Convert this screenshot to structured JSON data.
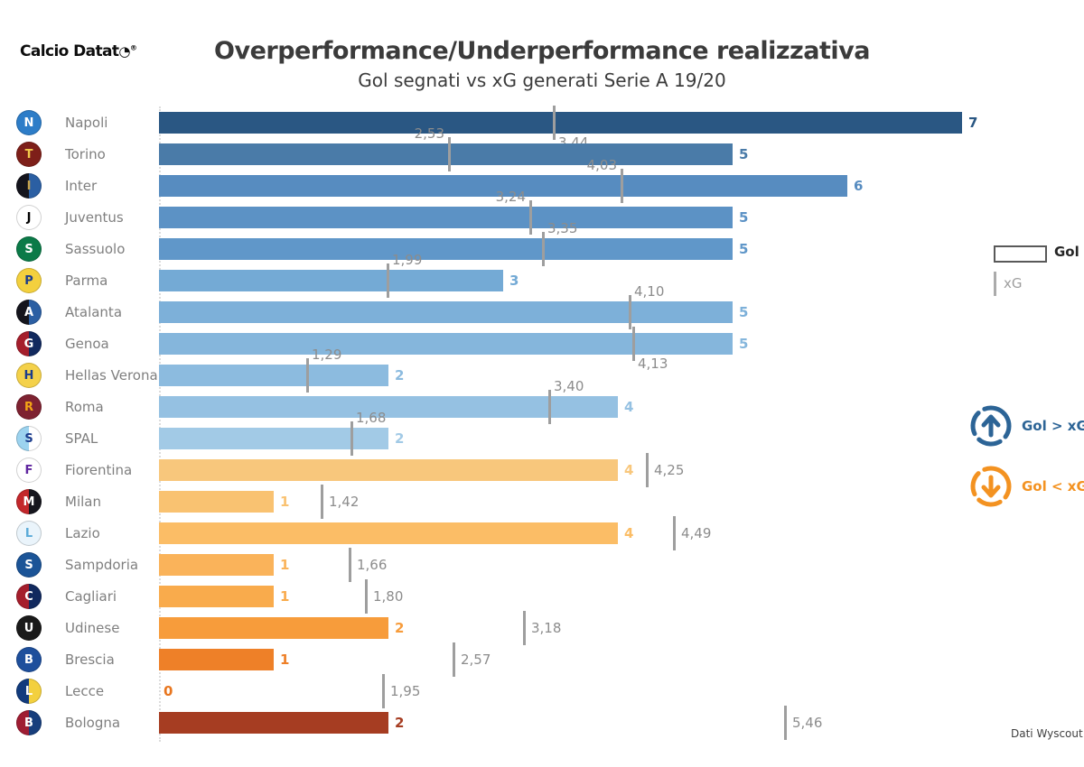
{
  "header": {
    "brand_text": "Calcio Datat",
    "brand_clock_glyph": "◔",
    "brand_registered": "®",
    "title": "Overperformance/Underperformance realizzativa",
    "subtitle": "Gol segnati vs xG generati Serie A 19/20"
  },
  "legend": {
    "gol_label": "Gol",
    "xg_label": "xG"
  },
  "badges": {
    "over_label": "Gol > xG",
    "over_color": "#2c6496",
    "under_label": "Gol < xG",
    "under_color": "#f39221"
  },
  "footer": {
    "source": "Dati Wyscout"
  },
  "chart_data": {
    "type": "bar",
    "orientation": "horizontal",
    "title": "Overperformance/Underperformance realizzativa",
    "subtitle": "Gol segnati vs xG generati Serie A 19/20",
    "xlim": [
      0,
      7.2
    ],
    "grid": false,
    "legend_position": "right",
    "decimal_separator": ",",
    "categories": [
      "Napoli",
      "Torino",
      "Inter",
      "Juventus",
      "Sassuolo",
      "Parma",
      "Atalanta",
      "Genoa",
      "Hellas Verona",
      "Roma",
      "SPAL",
      "Fiorentina",
      "Milan",
      "Lazio",
      "Sampdoria",
      "Cagliari",
      "Udinese",
      "Brescia",
      "Lecce",
      "Bologna"
    ],
    "series": [
      {
        "name": "Gol",
        "values": [
          7,
          5,
          6,
          5,
          5,
          3,
          5,
          5,
          2,
          4,
          2,
          4,
          1,
          4,
          1,
          1,
          2,
          1,
          0,
          2
        ]
      },
      {
        "name": "xG",
        "values": [
          3.44,
          2.53,
          4.03,
          3.24,
          3.35,
          1.99,
          4.1,
          4.13,
          1.29,
          3.4,
          1.68,
          4.25,
          1.42,
          4.49,
          1.66,
          1.8,
          3.18,
          2.57,
          1.95,
          5.46
        ]
      }
    ],
    "teams": [
      {
        "name": "Napoli",
        "gol": 7,
        "xg": 3.44,
        "xg_label": "3,44",
        "bar_color": "#2a5783",
        "xg_label_side": "below-right",
        "logo": {
          "initial": "N",
          "c1": "#2d7dc8",
          "c2": "#2d7dc8",
          "text": "#ffffff"
        }
      },
      {
        "name": "Torino",
        "gol": 5,
        "xg": 2.53,
        "xg_label": "2,53",
        "bar_color": "#4a7ba8",
        "xg_label_side": "above-left",
        "logo": {
          "initial": "T",
          "c1": "#7e1f19",
          "c2": "#7e1f19",
          "text": "#f2c94c"
        }
      },
      {
        "name": "Inter",
        "gol": 6,
        "xg": 4.03,
        "xg_label": "4,03",
        "bar_color": "#578cc0",
        "xg_label_side": "above-left",
        "logo": {
          "initial": "I",
          "c1": "#14141c",
          "c2": "#2b5fa3",
          "text": "#c9a44c"
        }
      },
      {
        "name": "Juventus",
        "gol": 5,
        "xg": 3.24,
        "xg_label": "3,24",
        "bar_color": "#5c92c5",
        "xg_label_side": "above-left",
        "logo": {
          "initial": "J",
          "c1": "#ffffff",
          "c2": "#ffffff",
          "text": "#000000"
        }
      },
      {
        "name": "Sassuolo",
        "gol": 5,
        "xg": 3.35,
        "xg_label": "3,35",
        "bar_color": "#6097c9",
        "xg_label_side": "above-right",
        "logo": {
          "initial": "S",
          "c1": "#0b7a48",
          "c2": "#0b7a48",
          "text": "#ffffff"
        }
      },
      {
        "name": "Parma",
        "gol": 3,
        "xg": 1.99,
        "xg_label": "1,99",
        "bar_color": "#74aad5",
        "xg_label_side": "above-right",
        "logo": {
          "initial": "P",
          "c1": "#f3d03e",
          "c2": "#f3d03e",
          "text": "#1b3c8c"
        }
      },
      {
        "name": "Atalanta",
        "gol": 5,
        "xg": 4.1,
        "xg_label": "4,10",
        "bar_color": "#7db0d9",
        "xg_label_side": "above-right",
        "logo": {
          "initial": "A",
          "c1": "#15151d",
          "c2": "#2b5fa3",
          "text": "#ffffff"
        }
      },
      {
        "name": "Genoa",
        "gol": 5,
        "xg": 4.13,
        "xg_label": "4,13",
        "bar_color": "#85b6dc",
        "xg_label_side": "below-right",
        "logo": {
          "initial": "G",
          "c1": "#a51e2c",
          "c2": "#11295e",
          "text": "#ffffff"
        }
      },
      {
        "name": "Hellas Verona",
        "gol": 2,
        "xg": 1.29,
        "xg_label": "1,29",
        "bar_color": "#8cbbdf",
        "xg_label_side": "above-right",
        "logo": {
          "initial": "H",
          "c1": "#f4d14a",
          "c2": "#f4d14a",
          "text": "#1b3c8c"
        }
      },
      {
        "name": "Roma",
        "gol": 4,
        "xg": 3.4,
        "xg_label": "3,40",
        "bar_color": "#95c1e2",
        "xg_label_side": "above-right",
        "logo": {
          "initial": "R",
          "c1": "#7e2231",
          "c2": "#7e2231",
          "text": "#f3a515"
        }
      },
      {
        "name": "SPAL",
        "gol": 2,
        "xg": 1.68,
        "xg_label": "1,68",
        "bar_color": "#a2cae6",
        "xg_label_side": "above-right",
        "logo": {
          "initial": "S",
          "c1": "#9cd3ef",
          "c2": "#ffffff",
          "text": "#1b3c8c"
        }
      },
      {
        "name": "Fiorentina",
        "gol": 4,
        "xg": 4.25,
        "xg_label": "4,25",
        "bar_color": "#f8c77c",
        "xg_label_side": "right",
        "logo": {
          "initial": "F",
          "c1": "#ffffff",
          "c2": "#ffffff",
          "text": "#5f259f"
        }
      },
      {
        "name": "Milan",
        "gol": 1,
        "xg": 1.42,
        "xg_label": "1,42",
        "bar_color": "#f9c271",
        "xg_label_side": "right",
        "logo": {
          "initial": "M",
          "c1": "#c3272b",
          "c2": "#15151d",
          "text": "#ffffff"
        }
      },
      {
        "name": "Lazio",
        "gol": 4,
        "xg": 4.49,
        "xg_label": "4,49",
        "bar_color": "#fbbd66",
        "xg_label_side": "right",
        "logo": {
          "initial": "L",
          "c1": "#eaf4fb",
          "c2": "#eaf4fb",
          "text": "#5aaad8"
        }
      },
      {
        "name": "Sampdoria",
        "gol": 1,
        "xg": 1.66,
        "xg_label": "1,66",
        "bar_color": "#fab35a",
        "xg_label_side": "right",
        "logo": {
          "initial": "S",
          "c1": "#1b5497",
          "c2": "#1b5497",
          "text": "#ffffff"
        }
      },
      {
        "name": "Cagliari",
        "gol": 1,
        "xg": 1.8,
        "xg_label": "1,80",
        "bar_color": "#f9ab4c",
        "xg_label_side": "right",
        "logo": {
          "initial": "C",
          "c1": "#a51e2c",
          "c2": "#11295e",
          "text": "#ffffff"
        }
      },
      {
        "name": "Udinese",
        "gol": 2,
        "xg": 3.18,
        "xg_label": "3,18",
        "bar_color": "#f79c3b",
        "xg_label_side": "right",
        "logo": {
          "initial": "U",
          "c1": "#1a1a1a",
          "c2": "#1a1a1a",
          "text": "#ffffff"
        }
      },
      {
        "name": "Brescia",
        "gol": 1,
        "xg": 2.57,
        "xg_label": "2,57",
        "bar_color": "#ee8028",
        "xg_label_side": "right",
        "logo": {
          "initial": "B",
          "c1": "#1e4f9c",
          "c2": "#1e4f9c",
          "text": "#ffffff"
        }
      },
      {
        "name": "Lecce",
        "gol": 0,
        "xg": 1.95,
        "xg_label": "1,95",
        "bar_color": "#e8761f",
        "xg_label_side": "right",
        "logo": {
          "initial": "L",
          "c1": "#123b7d",
          "c2": "#f3d03e",
          "text": "#ffffff"
        }
      },
      {
        "name": "Bologna",
        "gol": 2,
        "xg": 5.46,
        "xg_label": "5,46",
        "bar_color": "#a63d22",
        "xg_label_side": "right",
        "logo": {
          "initial": "B",
          "c1": "#9f1d33",
          "c2": "#173e7c",
          "text": "#ffffff"
        }
      }
    ]
  }
}
